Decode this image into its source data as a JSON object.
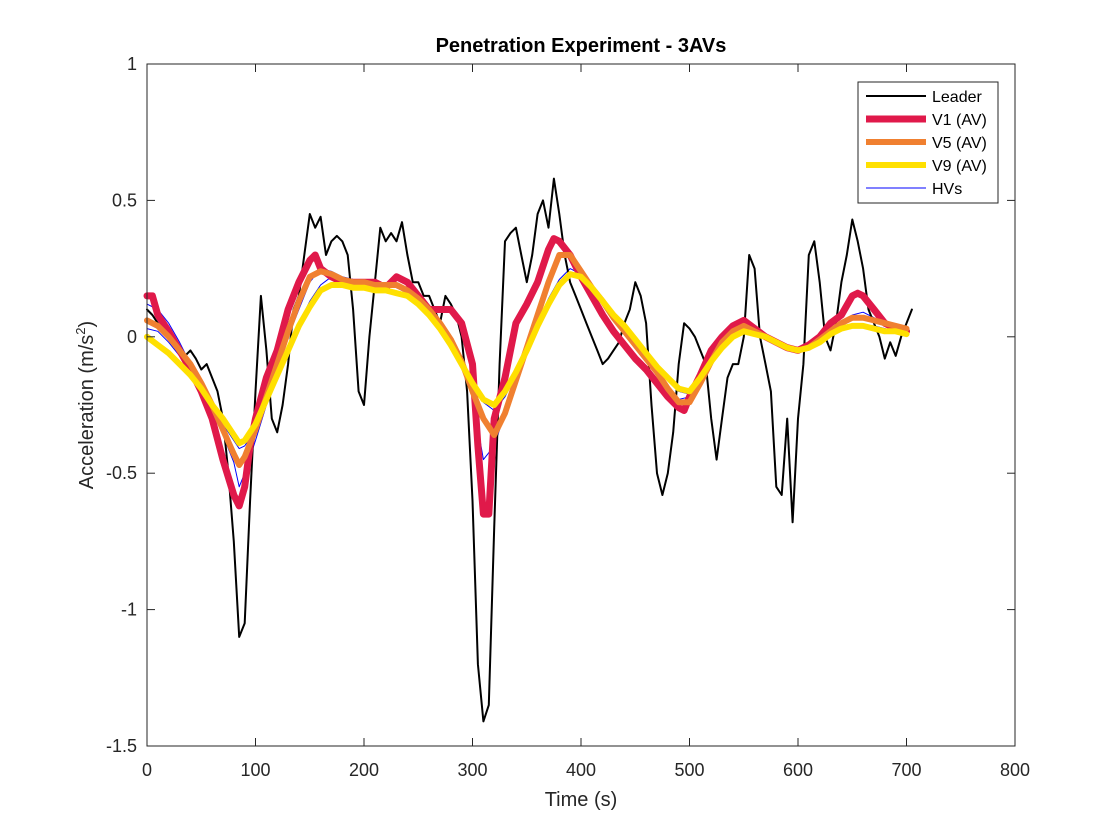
{
  "chart_data": {
    "type": "line",
    "title": "Penetration Experiment - 3AVs",
    "xlabel": "Time (s)",
    "ylabel": "Acceleration (m/s",
    "ylabel_sup": "2",
    "ylabel_end": ")",
    "xlim": [
      0,
      800
    ],
    "ylim": [
      -1.5,
      1
    ],
    "xticks": [
      0,
      100,
      200,
      300,
      400,
      500,
      600,
      700,
      800
    ],
    "yticks": [
      -1.5,
      -1,
      -0.5,
      0,
      0.5,
      1
    ],
    "xtick_labels": [
      "0",
      "100",
      "200",
      "300",
      "400",
      "500",
      "600",
      "700",
      "800"
    ],
    "ytick_labels": [
      "-1.5",
      "-1",
      "-0.5",
      "0",
      "0.5",
      "1"
    ],
    "grid": false,
    "legend_position": "top-right",
    "series": [
      {
        "name": "HVs",
        "color": "#0000ff",
        "width": 1,
        "x": [
          0,
          10,
          20,
          30,
          40,
          50,
          60,
          70,
          80,
          85,
          90,
          100,
          110,
          120,
          130,
          140,
          150,
          160,
          170,
          180,
          190,
          200,
          210,
          220,
          230,
          240,
          250,
          260,
          270,
          280,
          290,
          300,
          310,
          320,
          330,
          340,
          350,
          360,
          370,
          380,
          390,
          400,
          410,
          420,
          430,
          440,
          450,
          460,
          470,
          480,
          490,
          500,
          510,
          520,
          530,
          540,
          550,
          560,
          570,
          580,
          590,
          600,
          610,
          620,
          630,
          640,
          650,
          660,
          670,
          680,
          690,
          700
        ],
        "y": [
          0.03,
          0.02,
          -0.02,
          -0.07,
          -0.12,
          -0.18,
          -0.25,
          -0.32,
          -0.38,
          -0.41,
          -0.4,
          -0.34,
          -0.25,
          -0.15,
          -0.05,
          0.05,
          0.13,
          0.19,
          0.22,
          0.22,
          0.21,
          0.2,
          0.2,
          0.19,
          0.18,
          0.16,
          0.13,
          0.09,
          0.04,
          -0.02,
          -0.09,
          -0.17,
          -0.24,
          -0.27,
          -0.22,
          -0.14,
          -0.05,
          0.05,
          0.14,
          0.21,
          0.25,
          0.23,
          0.19,
          0.14,
          0.09,
          0.04,
          -0.01,
          -0.06,
          -0.11,
          -0.16,
          -0.2,
          -0.21,
          -0.16,
          -0.09,
          -0.03,
          0.01,
          0.03,
          0.02,
          0.0,
          -0.02,
          -0.04,
          -0.05,
          -0.04,
          -0.02,
          0.01,
          0.03,
          0.04,
          0.04,
          0.04,
          0.03,
          0.02,
          0.02
        ]
      },
      {
        "name": "HVs",
        "color": "#0000ff",
        "width": 1,
        "x": [
          0,
          10,
          20,
          30,
          40,
          50,
          60,
          70,
          80,
          85,
          90,
          100,
          110,
          120,
          130,
          140,
          150,
          160,
          170,
          180,
          190,
          200,
          210,
          220,
          230,
          240,
          250,
          260,
          270,
          280,
          290,
          300,
          310,
          320,
          330,
          340,
          350,
          360,
          370,
          380,
          390,
          400,
          410,
          420,
          430,
          440,
          450,
          460,
          470,
          480,
          490,
          500,
          510,
          520,
          530,
          540,
          550,
          560,
          570,
          580,
          590,
          600,
          610,
          620,
          630,
          640,
          650,
          660,
          670,
          680,
          690,
          700
        ],
        "y": [
          0.12,
          0.1,
          0.05,
          -0.02,
          -0.1,
          -0.18,
          -0.26,
          -0.36,
          -0.46,
          -0.55,
          -0.5,
          -0.38,
          -0.25,
          -0.12,
          0.0,
          0.1,
          0.2,
          0.25,
          0.24,
          0.22,
          0.21,
          0.2,
          0.19,
          0.19,
          0.18,
          0.17,
          0.14,
          0.1,
          0.06,
          0.0,
          -0.1,
          -0.22,
          -0.45,
          -0.4,
          -0.28,
          -0.15,
          -0.03,
          0.08,
          0.2,
          0.3,
          0.3,
          0.24,
          0.18,
          0.13,
          0.08,
          0.03,
          -0.02,
          -0.07,
          -0.12,
          -0.18,
          -0.23,
          -0.22,
          -0.16,
          -0.08,
          -0.01,
          0.03,
          0.05,
          0.03,
          0.0,
          -0.02,
          -0.05,
          -0.06,
          -0.04,
          -0.02,
          0.02,
          0.05,
          0.08,
          0.09,
          0.07,
          0.05,
          0.04,
          0.02
        ]
      },
      {
        "name": "Leader",
        "color": "#000000",
        "width": 2,
        "x": [
          0,
          5,
          10,
          15,
          20,
          25,
          30,
          35,
          40,
          45,
          50,
          55,
          60,
          65,
          70,
          75,
          80,
          85,
          90,
          95,
          100,
          105,
          110,
          115,
          120,
          125,
          130,
          135,
          140,
          145,
          150,
          155,
          160,
          165,
          170,
          175,
          180,
          185,
          190,
          195,
          200,
          205,
          210,
          215,
          220,
          225,
          230,
          235,
          240,
          245,
          250,
          255,
          260,
          265,
          270,
          275,
          280,
          285,
          290,
          295,
          300,
          305,
          310,
          315,
          320,
          325,
          330,
          335,
          340,
          345,
          350,
          355,
          360,
          365,
          370,
          375,
          380,
          385,
          390,
          395,
          400,
          405,
          410,
          415,
          420,
          425,
          430,
          435,
          440,
          445,
          450,
          455,
          460,
          465,
          470,
          475,
          480,
          485,
          490,
          495,
          500,
          505,
          510,
          515,
          520,
          525,
          530,
          535,
          540,
          545,
          550,
          555,
          560,
          565,
          570,
          575,
          580,
          585,
          590,
          595,
          600,
          605,
          610,
          615,
          620,
          625,
          630,
          635,
          640,
          645,
          650,
          655,
          660,
          665,
          670,
          675,
          680,
          685,
          690,
          695,
          700,
          705
        ],
        "y": [
          0.1,
          0.08,
          0.05,
          0.02,
          0.0,
          -0.03,
          -0.05,
          -0.07,
          -0.05,
          -0.08,
          -0.12,
          -0.1,
          -0.15,
          -0.2,
          -0.3,
          -0.5,
          -0.75,
          -1.1,
          -1.05,
          -0.6,
          -0.2,
          0.15,
          -0.05,
          -0.3,
          -0.35,
          -0.25,
          -0.1,
          0.1,
          0.15,
          0.3,
          0.45,
          0.4,
          0.44,
          0.3,
          0.35,
          0.37,
          0.35,
          0.3,
          0.1,
          -0.2,
          -0.25,
          0.0,
          0.2,
          0.4,
          0.35,
          0.38,
          0.35,
          0.42,
          0.3,
          0.2,
          0.2,
          0.15,
          0.15,
          0.1,
          0.05,
          0.15,
          0.12,
          0.08,
          0.0,
          -0.2,
          -0.6,
          -1.2,
          -1.41,
          -1.35,
          -0.7,
          -0.1,
          0.35,
          0.38,
          0.4,
          0.3,
          0.2,
          0.3,
          0.45,
          0.5,
          0.4,
          0.58,
          0.45,
          0.3,
          0.2,
          0.15,
          0.1,
          0.05,
          0.0,
          -0.05,
          -0.1,
          -0.08,
          -0.05,
          -0.02,
          0.05,
          0.1,
          0.2,
          0.15,
          0.05,
          -0.25,
          -0.5,
          -0.58,
          -0.5,
          -0.35,
          -0.1,
          0.05,
          0.03,
          0.0,
          -0.05,
          -0.1,
          -0.3,
          -0.45,
          -0.3,
          -0.15,
          -0.1,
          -0.1,
          0.0,
          0.3,
          0.25,
          0.0,
          -0.1,
          -0.2,
          -0.55,
          -0.58,
          -0.3,
          -0.68,
          -0.3,
          -0.1,
          0.3,
          0.35,
          0.2,
          0.0,
          -0.05,
          0.05,
          0.2,
          0.3,
          0.43,
          0.35,
          0.25,
          0.1,
          0.05,
          0.0,
          -0.08,
          -0.02,
          -0.07,
          0.0,
          0.05,
          0.1
        ]
      },
      {
        "name": "V1 (AV)",
        "color": "#e0194a",
        "width": 7,
        "x": [
          0,
          5,
          10,
          20,
          30,
          40,
          50,
          60,
          70,
          80,
          85,
          90,
          95,
          100,
          110,
          120,
          130,
          140,
          150,
          155,
          160,
          170,
          180,
          190,
          200,
          210,
          220,
          230,
          240,
          250,
          260,
          270,
          280,
          290,
          300,
          305,
          310,
          315,
          320,
          330,
          340,
          350,
          360,
          370,
          375,
          380,
          390,
          400,
          410,
          420,
          430,
          440,
          450,
          460,
          470,
          480,
          490,
          495,
          500,
          510,
          520,
          530,
          540,
          550,
          560,
          570,
          580,
          590,
          600,
          610,
          620,
          630,
          640,
          650,
          655,
          660,
          670,
          680,
          690,
          700
        ],
        "y": [
          0.15,
          0.15,
          0.08,
          0.02,
          -0.05,
          -0.12,
          -0.2,
          -0.3,
          -0.45,
          -0.58,
          -0.62,
          -0.55,
          -0.4,
          -0.3,
          -0.15,
          -0.05,
          0.1,
          0.2,
          0.28,
          0.3,
          0.25,
          0.22,
          0.2,
          0.2,
          0.2,
          0.2,
          0.18,
          0.22,
          0.2,
          0.15,
          0.1,
          0.1,
          0.1,
          0.05,
          -0.1,
          -0.4,
          -0.65,
          -0.65,
          -0.3,
          -0.15,
          0.05,
          0.12,
          0.2,
          0.32,
          0.36,
          0.35,
          0.3,
          0.22,
          0.15,
          0.08,
          0.02,
          -0.03,
          -0.08,
          -0.12,
          -0.17,
          -0.22,
          -0.26,
          -0.27,
          -0.22,
          -0.14,
          -0.05,
          0.0,
          0.04,
          0.06,
          0.03,
          0.0,
          -0.02,
          -0.04,
          -0.05,
          -0.03,
          0.0,
          0.05,
          0.08,
          0.15,
          0.16,
          0.15,
          0.1,
          0.05,
          0.03,
          0.02
        ]
      },
      {
        "name": "V5 (AV)",
        "color": "#f08030",
        "width": 6,
        "x": [
          0,
          10,
          20,
          30,
          40,
          50,
          60,
          70,
          80,
          85,
          90,
          100,
          110,
          120,
          130,
          140,
          150,
          160,
          170,
          180,
          190,
          200,
          210,
          220,
          230,
          240,
          250,
          260,
          270,
          280,
          290,
          300,
          310,
          320,
          330,
          340,
          350,
          360,
          370,
          380,
          390,
          400,
          410,
          420,
          430,
          440,
          450,
          460,
          470,
          480,
          490,
          500,
          510,
          520,
          530,
          540,
          550,
          560,
          570,
          580,
          590,
          600,
          610,
          620,
          630,
          640,
          650,
          660,
          670,
          680,
          690,
          700
        ],
        "y": [
          0.06,
          0.04,
          0.0,
          -0.05,
          -0.1,
          -0.17,
          -0.25,
          -0.34,
          -0.43,
          -0.47,
          -0.44,
          -0.34,
          -0.22,
          -0.1,
          0.02,
          0.13,
          0.22,
          0.24,
          0.23,
          0.21,
          0.2,
          0.2,
          0.19,
          0.19,
          0.19,
          0.17,
          0.14,
          0.1,
          0.05,
          -0.01,
          -0.09,
          -0.2,
          -0.3,
          -0.36,
          -0.28,
          -0.16,
          -0.04,
          0.08,
          0.2,
          0.3,
          0.3,
          0.24,
          0.18,
          0.13,
          0.07,
          0.02,
          -0.03,
          -0.08,
          -0.13,
          -0.19,
          -0.24,
          -0.24,
          -0.17,
          -0.09,
          -0.02,
          0.02,
          0.04,
          0.02,
          0.0,
          -0.02,
          -0.04,
          -0.05,
          -0.04,
          -0.01,
          0.02,
          0.05,
          0.07,
          0.07,
          0.06,
          0.05,
          0.04,
          0.03
        ]
      },
      {
        "name": "V9 (AV)",
        "color": "#ffe000",
        "width": 6,
        "x": [
          0,
          10,
          20,
          30,
          40,
          50,
          60,
          70,
          80,
          85,
          90,
          100,
          110,
          120,
          130,
          140,
          150,
          160,
          170,
          180,
          190,
          200,
          210,
          220,
          230,
          240,
          250,
          260,
          270,
          280,
          290,
          300,
          310,
          320,
          330,
          340,
          350,
          360,
          370,
          380,
          390,
          400,
          410,
          420,
          430,
          440,
          450,
          460,
          470,
          480,
          490,
          500,
          510,
          520,
          530,
          540,
          550,
          560,
          570,
          580,
          590,
          600,
          610,
          620,
          630,
          640,
          650,
          660,
          670,
          680,
          690,
          700
        ],
        "y": [
          0.0,
          -0.03,
          -0.06,
          -0.1,
          -0.14,
          -0.19,
          -0.25,
          -0.3,
          -0.36,
          -0.39,
          -0.38,
          -0.32,
          -0.23,
          -0.14,
          -0.05,
          0.04,
          0.11,
          0.17,
          0.19,
          0.19,
          0.18,
          0.18,
          0.17,
          0.17,
          0.16,
          0.15,
          0.12,
          0.08,
          0.03,
          -0.03,
          -0.1,
          -0.17,
          -0.23,
          -0.25,
          -0.2,
          -0.13,
          -0.05,
          0.04,
          0.12,
          0.19,
          0.23,
          0.22,
          0.18,
          0.13,
          0.08,
          0.04,
          -0.01,
          -0.06,
          -0.11,
          -0.15,
          -0.19,
          -0.2,
          -0.15,
          -0.09,
          -0.04,
          0.0,
          0.02,
          0.01,
          0.0,
          -0.02,
          -0.04,
          -0.05,
          -0.04,
          -0.02,
          0.01,
          0.03,
          0.04,
          0.04,
          0.03,
          0.02,
          0.02,
          0.01
        ]
      }
    ],
    "legend": [
      {
        "name": "Leader",
        "color": "#000000",
        "width": 2
      },
      {
        "name": "V1 (AV)",
        "color": "#e0194a",
        "width": 7
      },
      {
        "name": "V5 (AV)",
        "color": "#f08030",
        "width": 6
      },
      {
        "name": "V9 (AV)",
        "color": "#ffe000",
        "width": 6
      },
      {
        "name": "HVs",
        "color": "#0000ff",
        "width": 1
      }
    ]
  }
}
